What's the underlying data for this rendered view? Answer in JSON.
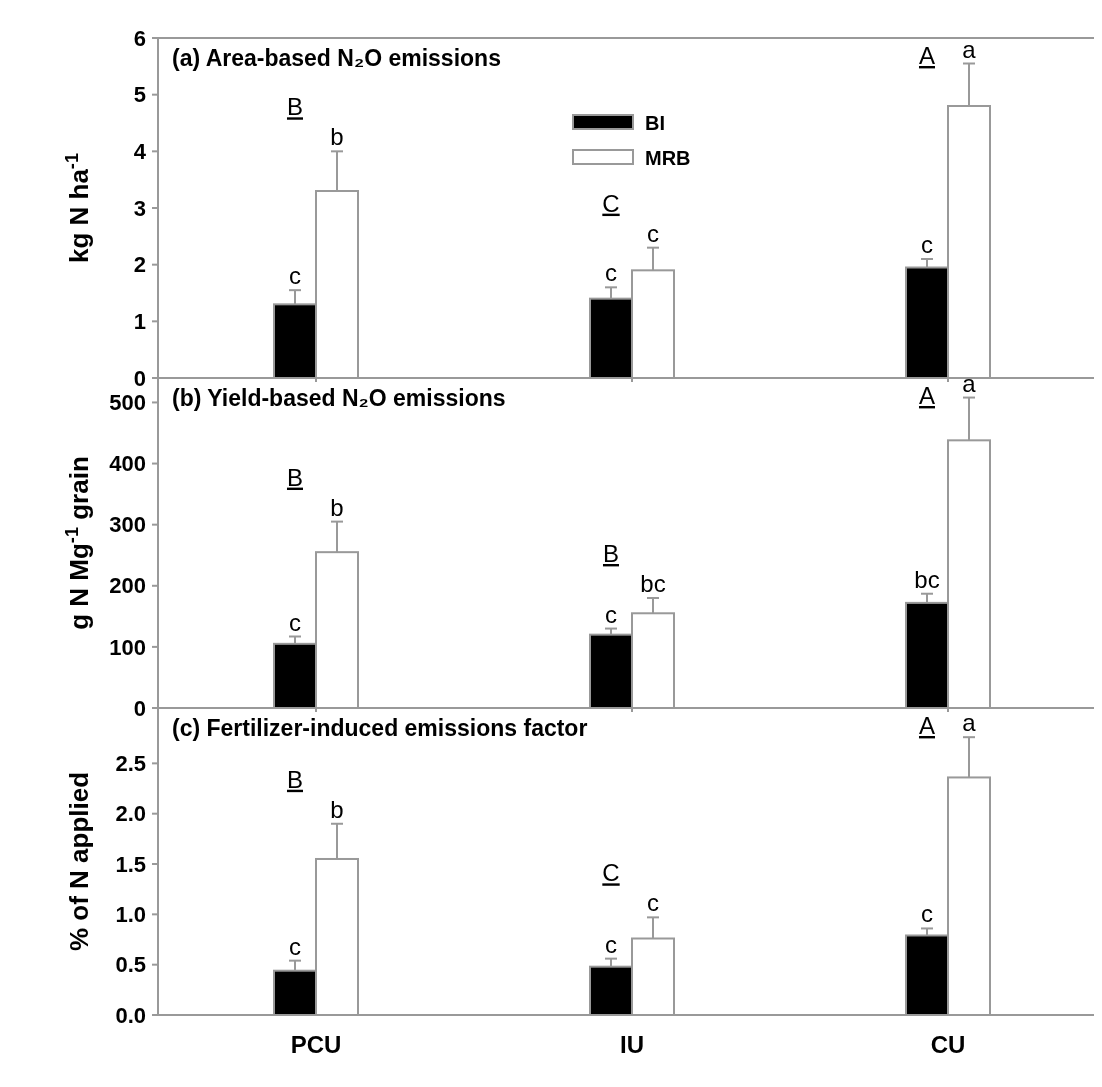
{
  "chart_data": [
    {
      "type": "bar",
      "title": "(a) Area-based N₂O emissions",
      "ylabel": "kg N ha$^{-1}$",
      "categories": [
        null,
        null,
        null
      ],
      "ylim": [
        0,
        6
      ],
      "yticks": [
        0,
        1,
        2,
        3,
        4,
        5,
        6
      ],
      "legend": "top",
      "tick_labels": "y",
      "series": [
        {
          "name": "BI",
          "color": "#000000",
          "values": [
            1.3,
            1.4,
            1.95
          ],
          "errors": [
            [
              1.3,
              1.55
            ],
            [
              1.4,
              1.6
            ],
            [
              1.95,
              2.1
            ]
          ],
          "value_labels": [
            "c",
            "c",
            "c"
          ]
        },
        {
          "name": "MRB",
          "color": "#ffffff",
          "values": [
            3.3,
            1.9,
            4.8
          ],
          "errors": [
            [
              3.3,
              4.0
            ],
            [
              1.9,
              2.3
            ],
            [
              4.8,
              5.55
            ]
          ],
          "value_labels": [
            "b",
            "c",
            "a"
          ]
        }
      ],
      "annotations": [
        "B",
        "C",
        "A"
      ]
    },
    {
      "type": "bar",
      "title": "(b) Yield-based N₂O emissions",
      "ylabel": "g N Mg$^{-1}$ grain",
      "categories": [
        null,
        null,
        null
      ],
      "ylim": [
        0,
        540
      ],
      "yticks": [
        0,
        100,
        200,
        300,
        400,
        500
      ],
      "tick_labels": "y",
      "series": [
        {
          "color": "#000000",
          "values": [
            105,
            120,
            172
          ],
          "errors": [
            [
              105,
              117
            ],
            [
              120,
              130
            ],
            [
              172,
              187
            ]
          ],
          "value_labels": [
            "c",
            "c",
            "bc"
          ]
        },
        {
          "color": "#ffffff",
          "values": [
            255,
            155,
            438
          ],
          "errors": [
            [
              255,
              305
            ],
            [
              155,
              180
            ],
            [
              438,
              508
            ]
          ],
          "value_labels": [
            "b",
            "bc",
            "a"
          ]
        }
      ],
      "annotations": [
        "B",
        "B",
        "A"
      ]
    },
    {
      "type": "bar",
      "title": "(c) Fertilizer-induced emissions factor",
      "ylabel": "% of N applied",
      "categories": [
        "PCU",
        "IU",
        "CU"
      ],
      "ylim": [
        0,
        3.05
      ],
      "yticks": [
        {
          "value": 0,
          "label": "0.0"
        },
        {
          "value": 0.5,
          "label": "0.5"
        },
        {
          "value": 1,
          "label": "1.0"
        },
        {
          "value": 1.5,
          "label": "1.5"
        },
        {
          "value": 2,
          "label": "2.0"
        },
        {
          "value": 2.5,
          "label": "2.5"
        }
      ],
      "series": [
        {
          "color": "#000000",
          "values": [
            0.44,
            0.48,
            0.79
          ],
          "errors": [
            [
              0.44,
              0.54
            ],
            [
              0.48,
              0.56
            ],
            [
              0.79,
              0.86
            ]
          ],
          "value_labels": [
            "c",
            "c",
            "c"
          ]
        },
        {
          "color": "#ffffff",
          "values": [
            1.55,
            0.76,
            2.36
          ],
          "errors": [
            [
              1.55,
              1.9
            ],
            [
              0.76,
              0.97
            ],
            [
              2.36,
              2.76
            ]
          ],
          "value_labels": [
            "b",
            "c",
            "a"
          ]
        }
      ],
      "annotations": [
        "B",
        "C",
        "A"
      ]
    }
  ]
}
